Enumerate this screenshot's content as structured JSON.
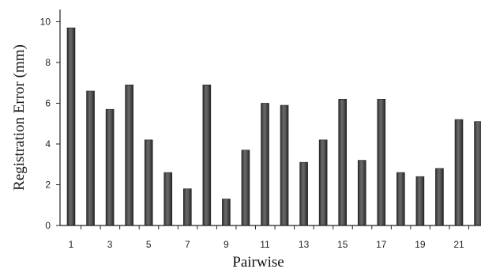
{
  "chart_data": {
    "type": "bar",
    "title": "",
    "xlabel": "Pairwise",
    "ylabel": "Registration Error (mm)",
    "ylim": [
      0,
      10.6
    ],
    "yticks": [
      "0",
      "2",
      "4",
      "6",
      "8",
      "10"
    ],
    "xtick_labels": [
      "1",
      "",
      "3",
      "",
      "5",
      "",
      "7",
      "",
      "9",
      "",
      "11",
      "",
      "13",
      "",
      "15",
      "",
      "17",
      "",
      "19",
      "",
      "21",
      ""
    ],
    "categories": [
      "1",
      "2",
      "3",
      "4",
      "5",
      "6",
      "7",
      "8",
      "9",
      "10",
      "11",
      "12",
      "13",
      "14",
      "15",
      "16",
      "17",
      "18",
      "19",
      "20",
      "21",
      "22"
    ],
    "values": [
      9.7,
      6.6,
      5.7,
      6.9,
      4.2,
      2.6,
      1.8,
      6.9,
      1.3,
      3.7,
      6.0,
      5.9,
      3.1,
      4.2,
      6.2,
      3.2,
      6.2,
      2.6,
      2.4,
      2.8,
      5.2,
      5.1
    ],
    "grid": false,
    "bar_color": "#4a4a4a"
  }
}
